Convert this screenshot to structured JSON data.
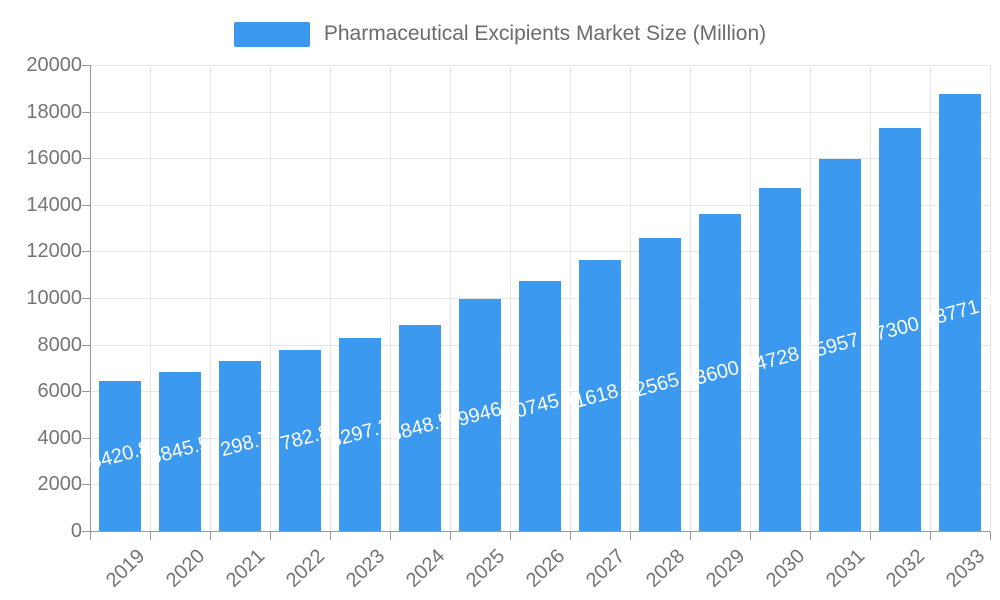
{
  "legend": {
    "label": "Pharmaceutical Excipients Market Size (Million)"
  },
  "chart_data": {
    "type": "bar",
    "title": "Pharmaceutical Excipients Market Size (Million)",
    "xlabel": "",
    "ylabel": "",
    "categories": [
      "2019",
      "2020",
      "2021",
      "2022",
      "2023",
      "2024",
      "2025",
      "2026",
      "2027",
      "2028",
      "2029",
      "2030",
      "2031",
      "2032",
      "2033"
    ],
    "values": [
      6420.8,
      6845.5,
      7298.7,
      7782.8,
      8297.2,
      8848.5,
      9946,
      10745.5,
      11618.2,
      12565.6,
      13600.8,
      14728.6,
      15957.6,
      17300.8,
      18771.4
    ],
    "value_labels": [
      "6420.8",
      "6845.5",
      "7298.7",
      "7782.8",
      "8297.2",
      "8848.5",
      "9946",
      "10745.5",
      "11618.2",
      "12565.6",
      "13600.8",
      "14728.6",
      "15957.6",
      "17300.8",
      "18771.4"
    ],
    "ylim": [
      0,
      20000
    ],
    "ytick_step": 2000,
    "ytick_labels": [
      "0",
      "2000",
      "4000",
      "6000",
      "8000",
      "10000",
      "12000",
      "14000",
      "16000",
      "18000",
      "20000"
    ],
    "grid": true,
    "legend_position": "top-center",
    "colors": {
      "bar": "#3b99f0",
      "axis_text": "#757575",
      "grid_line": "#e6e6e6",
      "axis_line": "#999999",
      "data_label_text": "#ffffff",
      "legend_text": "#6b6b6b",
      "background": "#ffffff"
    }
  }
}
